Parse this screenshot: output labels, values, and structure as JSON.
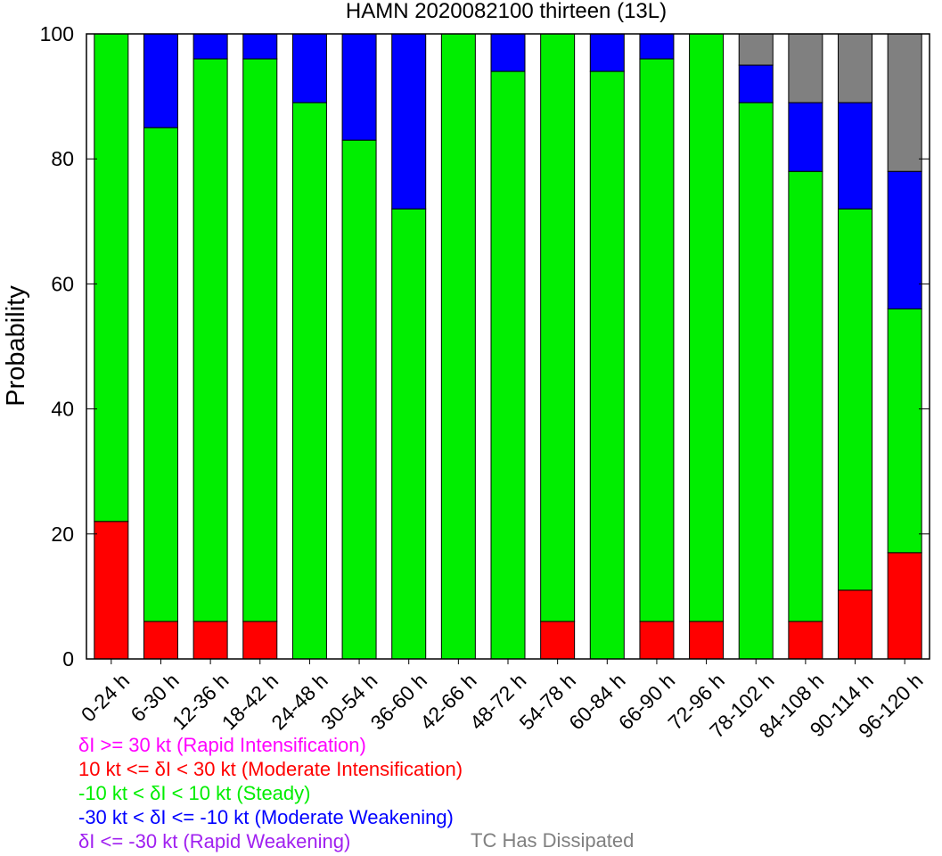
{
  "chart_data": {
    "type": "bar",
    "stacked": true,
    "title": "HAMN 2020082100 thirteen (13L)",
    "xlabel": "",
    "ylabel": "Probability",
    "ylim": [
      0,
      100
    ],
    "yticks": [
      0,
      20,
      40,
      60,
      80,
      100
    ],
    "grid": false,
    "categories": [
      "0-24 h",
      "6-30 h",
      "12-36 h",
      "18-42 h",
      "24-48 h",
      "30-54 h",
      "36-60 h",
      "42-66 h",
      "48-72 h",
      "54-78 h",
      "60-84 h",
      "66-90 h",
      "72-96 h",
      "78-102 h",
      "84-108 h",
      "90-114 h",
      "96-120 h"
    ],
    "series": [
      {
        "key": "ri",
        "color": "#ff00ff",
        "values": [
          0,
          0,
          0,
          0,
          0,
          0,
          0,
          0,
          0,
          0,
          0,
          0,
          0,
          0,
          0,
          0,
          0
        ]
      },
      {
        "key": "mi",
        "color": "#ff0000",
        "values": [
          22,
          6,
          6,
          6,
          0,
          0,
          0,
          0,
          0,
          6,
          0,
          6,
          6,
          0,
          6,
          11,
          17
        ]
      },
      {
        "key": "steady",
        "color": "#00ee00",
        "values": [
          78,
          79,
          90,
          90,
          89,
          83,
          72,
          100,
          94,
          94,
          94,
          90,
          94,
          89,
          72,
          61,
          39
        ]
      },
      {
        "key": "mw",
        "color": "#0000ff",
        "values": [
          0,
          15,
          4,
          4,
          11,
          17,
          28,
          0,
          6,
          0,
          6,
          4,
          0,
          6,
          11,
          17,
          22
        ]
      },
      {
        "key": "rw",
        "color": "#a020f0",
        "values": [
          0,
          0,
          0,
          0,
          0,
          0,
          0,
          0,
          0,
          0,
          0,
          0,
          0,
          0,
          0,
          0,
          0
        ]
      },
      {
        "key": "dissipated",
        "color": "#808080",
        "values": [
          0,
          0,
          0,
          0,
          0,
          0,
          0,
          0,
          0,
          0,
          0,
          0,
          0,
          5,
          11,
          11,
          22
        ]
      }
    ],
    "legend": [
      {
        "text": "δI >= 30 kt (Rapid Intensification)",
        "color": "#ff00ff"
      },
      {
        "text": "10 kt <= δI < 30 kt (Moderate Intensification)",
        "color": "#ff0000"
      },
      {
        "text": "-10 kt < δI < 10 kt (Steady)",
        "color": "#00ee00"
      },
      {
        "text": "-30 kt < δI <= -10 kt (Moderate Weakening)",
        "color": "#0000ff"
      },
      {
        "text": "δI <= -30 kt (Rapid Weakening)",
        "color": "#a020f0"
      }
    ],
    "dissipated_label": {
      "text": "TC Has Dissipated",
      "color": "#808080"
    }
  }
}
